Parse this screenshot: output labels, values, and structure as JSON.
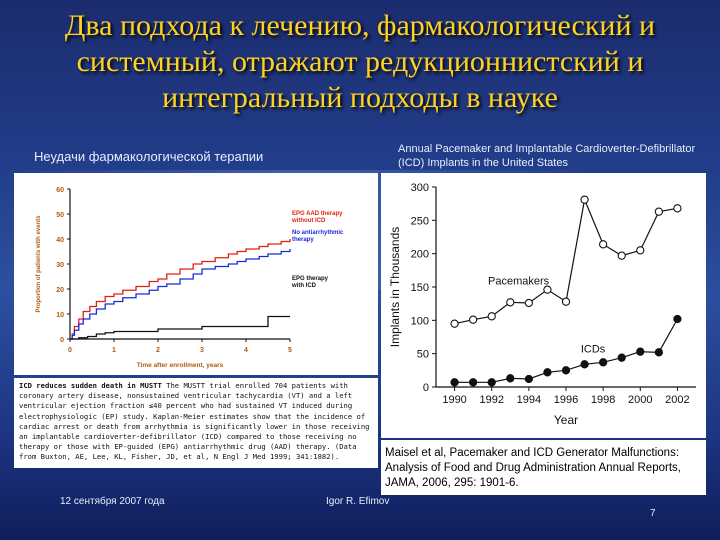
{
  "slide": {
    "title": "Два подхода к лечению, фармакологический и системный, отражают редукционнистский и интегральный подходы в науке",
    "left_caption": "Неудачи фармакологической терапии",
    "right_caption": "Annual Pacemaker and Implantable Cardioverter-Defibrillator (ICD) Implants in the United States",
    "left_text_bold": "ICD reduces sudden death in MUSTT",
    "left_text": "The MUSTT trial enrolled 704 patients with coronary artery disease, nonsustained ventricular tachycardia (VT) and a left ventricular ejection fraction ≤40 percent who had sustained VT induced during electrophysiologic (EP) study. Kaplan-Meier estimates show that the incidence of cardiac arrest or death from arrhythmia is significantly lower in those receiving an implantable cardioverter-defibrillator (ICD) compared to those receiving no therapy or those with EP-guided (EPG) antiarrhythmic drug (AAD) therapy. (Data from Buxton, AE, Lee, KL, Fisher, JD, et al, N Engl J Med 1999; 341:1882).",
    "right_citation": "Maisel et al, Pacemaker and ICD Generator Malfunctions: Analysis of Food and Drug Administration Annual Reports, JAMA, 2006, 295: 1901-6.",
    "footer_date": "12 сентября 2007 года",
    "footer_author": "Igor R. Efimov",
    "page_number": "7",
    "colors": {
      "title": "#ffd21f",
      "caption": "#e8eefc"
    }
  },
  "chart_data": [
    {
      "type": "line",
      "title": "",
      "xlabel": "Time after enrollment, years",
      "ylabel": "Proportion of patients with events",
      "xlim": [
        0,
        5
      ],
      "ylim": [
        0,
        60
      ],
      "xticks": [
        0,
        1,
        2,
        3,
        4,
        5
      ],
      "yticks": [
        0,
        10,
        20,
        30,
        40,
        50,
        60
      ],
      "xtick_labels": [
        "0",
        "1",
        "2",
        "3",
        "4",
        "5"
      ],
      "ytick_labels": [
        "0",
        "10",
        "20",
        "30",
        "40",
        "50",
        "60"
      ],
      "series": [
        {
          "name": "EPG AAD therapy without ICD",
          "color": "#e02010",
          "x": [
            0,
            0.05,
            0.1,
            0.2,
            0.3,
            0.45,
            0.6,
            0.8,
            1.0,
            1.2,
            1.5,
            1.8,
            2.0,
            2.2,
            2.5,
            2.8,
            3.0,
            3.3,
            3.6,
            3.8,
            4.0,
            4.3,
            4.5,
            4.8,
            5.0
          ],
          "y": [
            0,
            2,
            5,
            8,
            11,
            13,
            15,
            17,
            18,
            19.5,
            21,
            23,
            24,
            26,
            28,
            30,
            31,
            32.5,
            34,
            35,
            36,
            37,
            38,
            39,
            40
          ]
        },
        {
          "name": "No antiarrhythmic therapy",
          "color": "#1a2ad8",
          "x": [
            0,
            0.05,
            0.1,
            0.2,
            0.3,
            0.45,
            0.6,
            0.8,
            1.0,
            1.2,
            1.5,
            1.8,
            2.0,
            2.2,
            2.5,
            2.8,
            3.0,
            3.3,
            3.6,
            3.8,
            4.0,
            4.3,
            4.5,
            4.8,
            5.0
          ],
          "y": [
            0,
            1.5,
            3.5,
            6,
            8,
            10,
            12,
            14,
            15,
            16.5,
            18,
            19.5,
            21,
            22,
            24,
            26,
            28,
            29,
            30,
            31,
            32,
            33,
            34,
            35,
            36
          ]
        },
        {
          "name": "EPG therapy with ICD",
          "color": "#111111",
          "x": [
            0,
            0.2,
            0.4,
            0.6,
            0.8,
            1.0,
            1.5,
            2.0,
            2.5,
            3.0,
            3.5,
            4.0,
            4.5,
            5.0
          ],
          "y": [
            0,
            0.5,
            1,
            2,
            2.5,
            3,
            3,
            4,
            4,
            5,
            5,
            5,
            9,
            9
          ]
        }
      ]
    },
    {
      "type": "line",
      "title": "Annual Pacemaker and Implantable Cardioverter-Defibrillator (ICD) Implants in the United States",
      "xlabel": "Year",
      "ylabel": "Implants in Thousands",
      "xlim": [
        1989,
        2003
      ],
      "ylim": [
        0,
        300
      ],
      "xticks": [
        1990,
        1992,
        1994,
        1996,
        1998,
        2000,
        2002
      ],
      "yticks": [
        0,
        50,
        100,
        150,
        200,
        250,
        300
      ],
      "xtick_labels": [
        "1990",
        "1992",
        "1994",
        "1996",
        "1998",
        "2000",
        "2002"
      ],
      "ytick_labels": [
        "0",
        "50",
        "100",
        "150",
        "200",
        "250",
        "300"
      ],
      "series": [
        {
          "name": "Pacemakers",
          "marker": "open",
          "x": [
            1990,
            1991,
            1992,
            1993,
            1994,
            1995,
            1996,
            1997,
            1998,
            1999,
            2000,
            2001,
            2002
          ],
          "y": [
            95,
            101,
            106,
            127,
            126,
            146,
            128,
            281,
            214,
            197,
            205,
            263,
            268
          ]
        },
        {
          "name": "ICDs",
          "marker": "filled",
          "x": [
            1990,
            1991,
            1992,
            1993,
            1994,
            1995,
            1996,
            1997,
            1998,
            1999,
            2000,
            2001,
            2002
          ],
          "y": [
            7,
            7,
            7,
            13,
            12,
            22,
            25,
            34,
            37,
            44,
            53,
            52,
            102
          ]
        }
      ]
    }
  ]
}
